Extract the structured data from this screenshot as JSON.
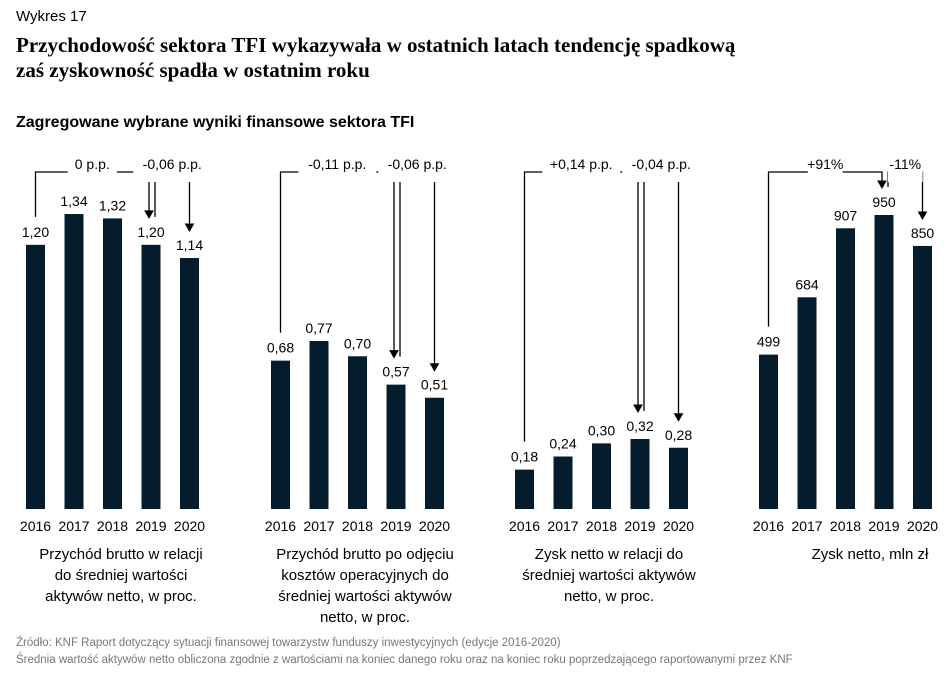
{
  "figure_label": "Wykres 17",
  "headline": {
    "line1": "Przychodowość sektora TFI wykazywała w ostatnich latach tendencję spadkową",
    "line2": "zaś zyskowność spadła w ostatnim roku"
  },
  "subtitle": "Zagregowane wybrane wyniki finansowe sektora TFI",
  "colors": {
    "bar": "#051c2c",
    "line": "#000000",
    "text": "#000000",
    "footnote": "#777777"
  },
  "chart_data": [
    {
      "type": "bar",
      "categories": [
        "2016",
        "2017",
        "2018",
        "2019",
        "2020"
      ],
      "values": [
        1.2,
        1.34,
        1.32,
        1.2,
        1.14
      ],
      "value_labels": [
        "1,20",
        "1,34",
        "1,32",
        "1,20",
        "1,14"
      ],
      "caption": "Przychód brutto w relacji do średniej wartości aktywów netto, w proc.",
      "caption_lines": [
        "Przychód brutto w relacji",
        "do średniej wartości",
        "aktywów netto, w proc."
      ],
      "annotations": [
        {
          "from": "2016",
          "to": "2019",
          "text": "0 p.p."
        },
        {
          "from": "2019",
          "to": "2020",
          "text": "-0,06 p.p."
        }
      ]
    },
    {
      "type": "bar",
      "categories": [
        "2016",
        "2017",
        "2018",
        "2019",
        "2020"
      ],
      "values": [
        0.68,
        0.77,
        0.7,
        0.57,
        0.51
      ],
      "value_labels": [
        "0,68",
        "0,77",
        "0,70",
        "0,57",
        "0,51"
      ],
      "caption": "Przychód brutto po odjęciu kosztów operacyjnych do średniej wartości aktywów netto, w proc.",
      "caption_lines": [
        "Przychód brutto po odjęciu",
        "kosztów operacyjnych do",
        "średniej wartości aktywów",
        "netto, w proc."
      ],
      "annotations": [
        {
          "from": "2016",
          "to": "2019",
          "text": "-0,11 p.p."
        },
        {
          "from": "2019",
          "to": "2020",
          "text": "-0,06 p.p."
        }
      ]
    },
    {
      "type": "bar",
      "categories": [
        "2016",
        "2017",
        "2018",
        "2019",
        "2020"
      ],
      "values": [
        0.18,
        0.24,
        0.3,
        0.32,
        0.28
      ],
      "value_labels": [
        "0,18",
        "0,24",
        "0,30",
        "0,32",
        "0,28"
      ],
      "caption": "Zysk netto w relacji do średniej wartości aktywów netto, w proc.",
      "caption_lines": [
        "Zysk netto w relacji do",
        "średniej wartości aktywów",
        "netto, w proc."
      ],
      "annotations": [
        {
          "from": "2016",
          "to": "2019",
          "text": "+0,14 p.p."
        },
        {
          "from": "2019",
          "to": "2020",
          "text": "-0,04 p.p."
        }
      ]
    },
    {
      "type": "bar",
      "categories": [
        "2016",
        "2017",
        "2018",
        "2019",
        "2020"
      ],
      "values": [
        499,
        684,
        907,
        950,
        850
      ],
      "value_labels": [
        "499",
        "684",
        "907",
        "950",
        "850"
      ],
      "caption": "Zysk netto, mln zł",
      "caption_lines": [
        "Zysk netto, mln zł"
      ],
      "annotations": [
        {
          "from": "2016",
          "to": "2019",
          "text": "+91%"
        },
        {
          "from": "2019",
          "to": "2020",
          "text": "-11%"
        }
      ]
    }
  ],
  "footnotes": [
    "Źródło: KNF Raport dotyczący sytuacji finansowej towarzystw funduszy inwestycyjnych (edycje 2016-2020)",
    "Średnia wartość aktywów netto obliczona zgodnie z wartościami na koniec danego roku oraz na koniec roku poprzedzającego raportowanymi przez KNF"
  ]
}
